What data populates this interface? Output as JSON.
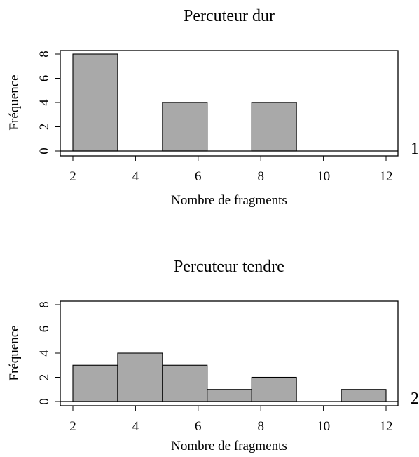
{
  "chart_data": [
    {
      "type": "bar",
      "title": "Percuteur dur",
      "xlabel": "Nombre de fragments",
      "ylabel": "Fréquence",
      "panel_label": "1",
      "xlim": [
        1.5,
        12.5
      ],
      "ylim": [
        0,
        8
      ],
      "xticks": [
        "2",
        "4",
        "6",
        "8",
        "10",
        "12"
      ],
      "yticks": [
        "0",
        "2",
        "4",
        "6",
        "8"
      ],
      "bins": [
        [
          2.0,
          3.43
        ],
        [
          3.43,
          4.86
        ],
        [
          4.86,
          6.29
        ],
        [
          6.29,
          7.71
        ],
        [
          7.71,
          9.14
        ],
        [
          9.14,
          10.57
        ],
        [
          10.57,
          12.0
        ]
      ],
      "values": [
        8,
        0,
        4,
        0,
        4,
        0,
        0
      ],
      "bar_color": "#a9a9a9",
      "grid": false
    },
    {
      "type": "bar",
      "title": "Percuteur tendre",
      "xlabel": "Nombre de fragments",
      "ylabel": "Fréquence",
      "panel_label": "2",
      "xlim": [
        1.5,
        12.5
      ],
      "ylim": [
        0,
        8
      ],
      "xticks": [
        "2",
        "4",
        "6",
        "8",
        "10",
        "12"
      ],
      "yticks": [
        "0",
        "2",
        "4",
        "6",
        "8"
      ],
      "bins": [
        [
          2.0,
          3.43
        ],
        [
          3.43,
          4.86
        ],
        [
          4.86,
          6.29
        ],
        [
          6.29,
          7.71
        ],
        [
          7.71,
          9.14
        ],
        [
          9.14,
          10.57
        ],
        [
          10.57,
          12.0
        ]
      ],
      "values": [
        3,
        4,
        3,
        1,
        2,
        0,
        1
      ],
      "bar_color": "#a9a9a9",
      "grid": false
    }
  ]
}
